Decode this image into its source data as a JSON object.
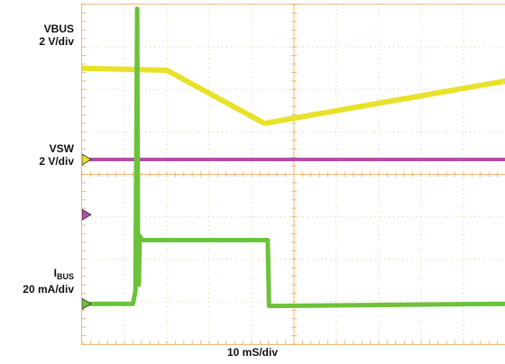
{
  "labels": {
    "vbus_name": "VBUS",
    "vbus_scale": "2 V/div",
    "vsw_name": "VSW",
    "vsw_scale": "2 V/div",
    "ibus_name": "I",
    "ibus_sub": "BUS",
    "ibus_scale": "20 mA/div",
    "timebase": "10 mS/div"
  },
  "colors": {
    "grid": "#f0b87a",
    "vbus": "#e8e22a",
    "vsw": "#b04fa8",
    "ibus": "#6cc23a"
  },
  "chart_data": {
    "type": "line",
    "title": "",
    "xlabel": "10 mS/div",
    "grid": true,
    "divisions": {
      "x": 10,
      "y": 8
    },
    "series": [
      {
        "name": "VBUS",
        "x": [
          0,
          2.0,
          4.3,
          10.0
        ],
        "y": [
          6.5,
          6.45,
          5.2,
          6.2
        ]
      },
      {
        "name": "VSW",
        "x": [
          0,
          10.0
        ],
        "y": [
          4.35,
          4.35
        ]
      },
      {
        "name": "IBUS",
        "x": [
          0,
          1.2,
          1.26,
          1.3,
          1.32,
          1.34,
          1.36,
          1.42,
          4.38,
          4.41,
          10.0
        ],
        "y": [
          0.95,
          0.95,
          1.25,
          7.9,
          2.0,
          1.4,
          2.55,
          2.45,
          2.45,
          0.9,
          0.95
        ]
      }
    ]
  }
}
